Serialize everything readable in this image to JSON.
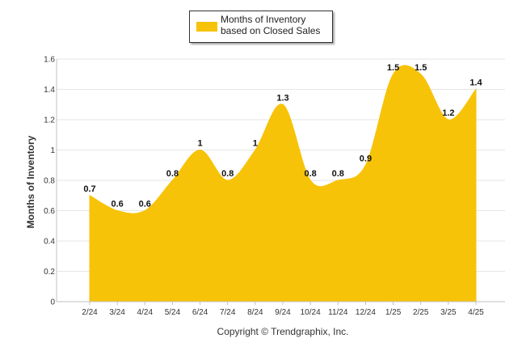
{
  "chart_data": {
    "type": "area",
    "categories": [
      "2/24",
      "3/24",
      "4/24",
      "5/24",
      "6/24",
      "7/24",
      "8/24",
      "9/24",
      "10/24",
      "11/24",
      "12/24",
      "1/25",
      "2/25",
      "3/25",
      "4/25"
    ],
    "series": [
      {
        "name": "Months of Inventory based on Closed Sales",
        "values": [
          0.7,
          0.6,
          0.6,
          0.8,
          1,
          0.8,
          1,
          1.3,
          0.8,
          0.8,
          0.9,
          1.5,
          1.5,
          1.2,
          1.4
        ],
        "labels": [
          "0.7",
          "0.6",
          "0.6",
          "0.8",
          "1",
          "0.8",
          "1",
          "1.3",
          "0.8",
          "0.8",
          "0.9",
          "1.5",
          "1.5",
          "1.2",
          "1.4"
        ],
        "color": "#F7C308"
      }
    ],
    "ylabel": "Months of Inventory",
    "ylim": [
      0,
      1.6
    ],
    "yticks": [
      0,
      0.2,
      0.4,
      0.6,
      0.8,
      1,
      1.2,
      1.4,
      1.6
    ],
    "ytick_labels": [
      "0",
      "0.2",
      "0.4",
      "0.6",
      "0.8",
      "1",
      "1.2",
      "1.4",
      "1.6"
    ],
    "grid": true,
    "legend": "top-center",
    "gridColor": "#e6e6e6"
  },
  "footer": {
    "copyright": "Copyright © Trendgraphix, Inc."
  }
}
